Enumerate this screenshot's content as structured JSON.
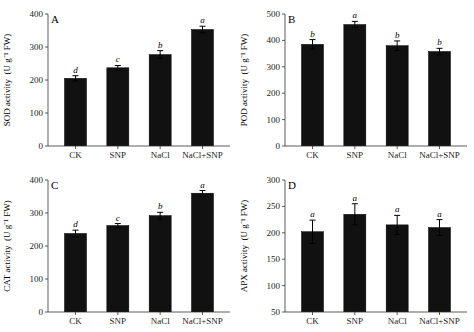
{
  "chart_data": [
    {
      "type": "bar",
      "title": "A",
      "ylabel": "SOD activity  (U g⁻¹ FW)",
      "categories": [
        "CK",
        "SNP",
        "NaCl",
        "NaCl+SNP"
      ],
      "values": [
        205,
        237,
        277,
        353
      ],
      "errors": [
        8,
        7,
        12,
        10
      ],
      "annotations": [
        "d",
        "c",
        "b",
        "a"
      ],
      "color": "#111111",
      "ylim": [
        0,
        400
      ],
      "yticks": [
        0,
        100,
        200,
        300,
        400
      ],
      "grid": false
    },
    {
      "type": "bar",
      "title": "B",
      "ylabel": "POD activity  (U g⁻¹ FW)",
      "categories": [
        "CK",
        "SNP",
        "NaCl",
        "NaCl+SNP"
      ],
      "values": [
        385,
        460,
        380,
        358
      ],
      "errors": [
        18,
        12,
        18,
        12
      ],
      "annotations": [
        "b",
        "a",
        "b",
        "b"
      ],
      "color": "#111111",
      "ylim": [
        0,
        500
      ],
      "yticks": [
        0,
        100,
        200,
        300,
        400,
        500
      ],
      "grid": false
    },
    {
      "type": "bar",
      "title": "C",
      "ylabel": "CAT activity  (U g⁻¹ FW)",
      "categories": [
        "CK",
        "SNP",
        "NaCl",
        "NaCl+SNP"
      ],
      "values": [
        238,
        262,
        292,
        360
      ],
      "errors": [
        10,
        6,
        10,
        8
      ],
      "annotations": [
        "d",
        "c",
        "b",
        "a"
      ],
      "color": "#111111",
      "ylim": [
        0,
        400
      ],
      "yticks": [
        0,
        100,
        200,
        300,
        400
      ],
      "grid": false
    },
    {
      "type": "bar",
      "title": "D",
      "ylabel": "APX activity  (U g⁻¹ FW)",
      "categories": [
        "CK",
        "SNP",
        "NaCl",
        "NaCl+SNP"
      ],
      "values": [
        202,
        235,
        215,
        210
      ],
      "errors": [
        22,
        20,
        18,
        15
      ],
      "annotations": [
        "a",
        "a",
        "a",
        "a"
      ],
      "color": "#111111",
      "ylim": [
        50,
        300
      ],
      "yticks": [
        50,
        100,
        150,
        200,
        250,
        300
      ],
      "grid": false
    }
  ]
}
